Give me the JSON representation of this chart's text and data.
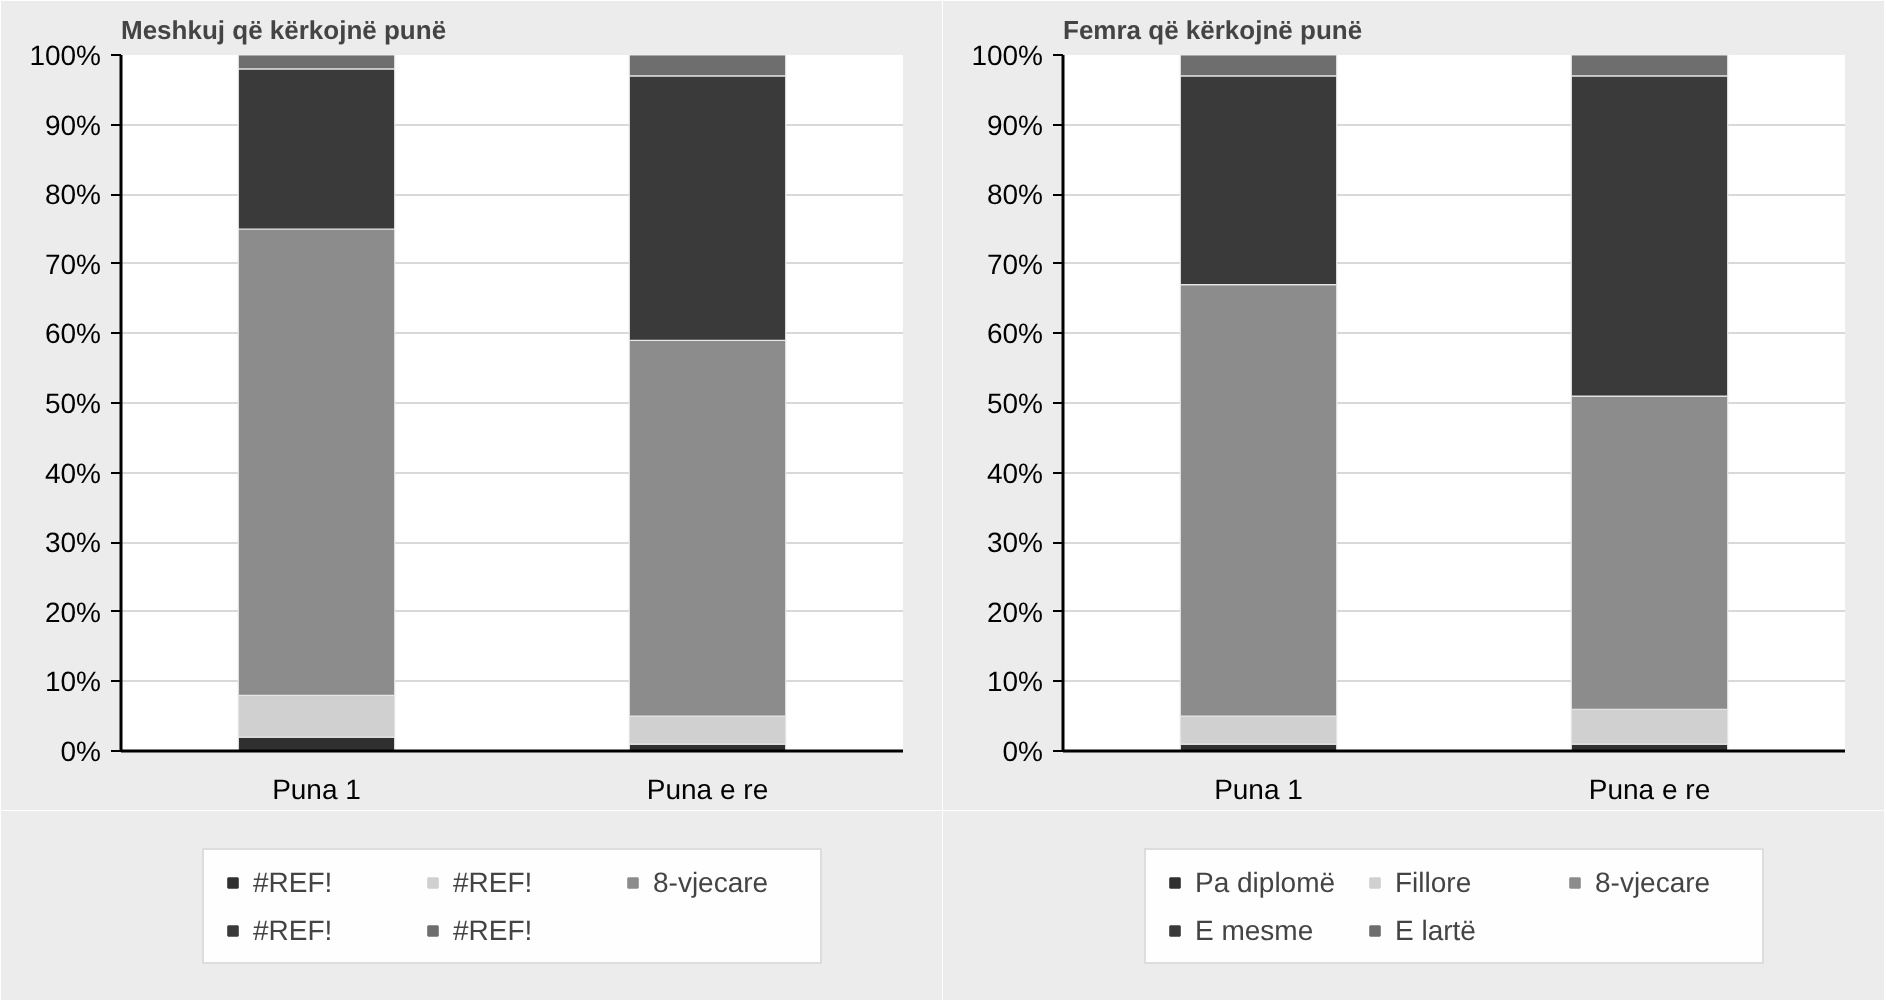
{
  "chart_data": [
    {
      "type": "bar",
      "title": "Meshkuj që kërkojnë punë",
      "categories": [
        "Puna 1",
        "Puna e re"
      ],
      "stacked": true,
      "ylim": [
        0,
        100
      ],
      "yticks": [
        {
          "value": 0,
          "label": "0%"
        },
        {
          "value": 10,
          "label": "10%"
        },
        {
          "value": 20,
          "label": "20%"
        },
        {
          "value": 30,
          "label": "30%"
        },
        {
          "value": 40,
          "label": "40%"
        },
        {
          "value": 50,
          "label": "50%"
        },
        {
          "value": 60,
          "label": "60%"
        },
        {
          "value": 70,
          "label": "70%"
        },
        {
          "value": 80,
          "label": "80%"
        },
        {
          "value": 90,
          "label": "90%"
        },
        {
          "value": 100,
          "label": "100%"
        }
      ],
      "grid": "y",
      "legend": "bottom",
      "series": [
        {
          "name": "#REF!",
          "color": "#303030",
          "values": [
            2,
            1
          ]
        },
        {
          "name": "#REF!",
          "color": "#d0d0d0",
          "values": [
            6,
            4
          ]
        },
        {
          "name": "8-vjecare",
          "color": "#8c8c8c",
          "values": [
            67,
            54
          ]
        },
        {
          "name": "#REF!",
          "color": "#3a3a3a",
          "values": [
            23,
            38
          ]
        },
        {
          "name": "#REF!",
          "color": "#6e6e6e",
          "values": [
            2,
            3
          ]
        }
      ]
    },
    {
      "type": "bar",
      "title": "Femra që kërkojnë punë",
      "categories": [
        "Puna 1",
        "Puna e re"
      ],
      "stacked": true,
      "ylim": [
        0,
        100
      ],
      "yticks": [
        {
          "value": 0,
          "label": "0%"
        },
        {
          "value": 10,
          "label": "10%"
        },
        {
          "value": 20,
          "label": "20%"
        },
        {
          "value": 30,
          "label": "30%"
        },
        {
          "value": 40,
          "label": "40%"
        },
        {
          "value": 50,
          "label": "50%"
        },
        {
          "value": 60,
          "label": "60%"
        },
        {
          "value": 70,
          "label": "70%"
        },
        {
          "value": 80,
          "label": "80%"
        },
        {
          "value": 90,
          "label": "90%"
        },
        {
          "value": 100,
          "label": "100%"
        }
      ],
      "grid": "y",
      "legend": "bottom",
      "series": [
        {
          "name": "Pa diplomë",
          "color": "#303030",
          "values": [
            1,
            1
          ]
        },
        {
          "name": "Fillore",
          "color": "#d0d0d0",
          "values": [
            4,
            5
          ]
        },
        {
          "name": "8-vjecare",
          "color": "#8c8c8c",
          "values": [
            62,
            45
          ]
        },
        {
          "name": "E mesme",
          "color": "#3a3a3a",
          "values": [
            30,
            46
          ]
        },
        {
          "name": "E lartë",
          "color": "#6e6e6e",
          "values": [
            3,
            3
          ]
        }
      ]
    }
  ]
}
